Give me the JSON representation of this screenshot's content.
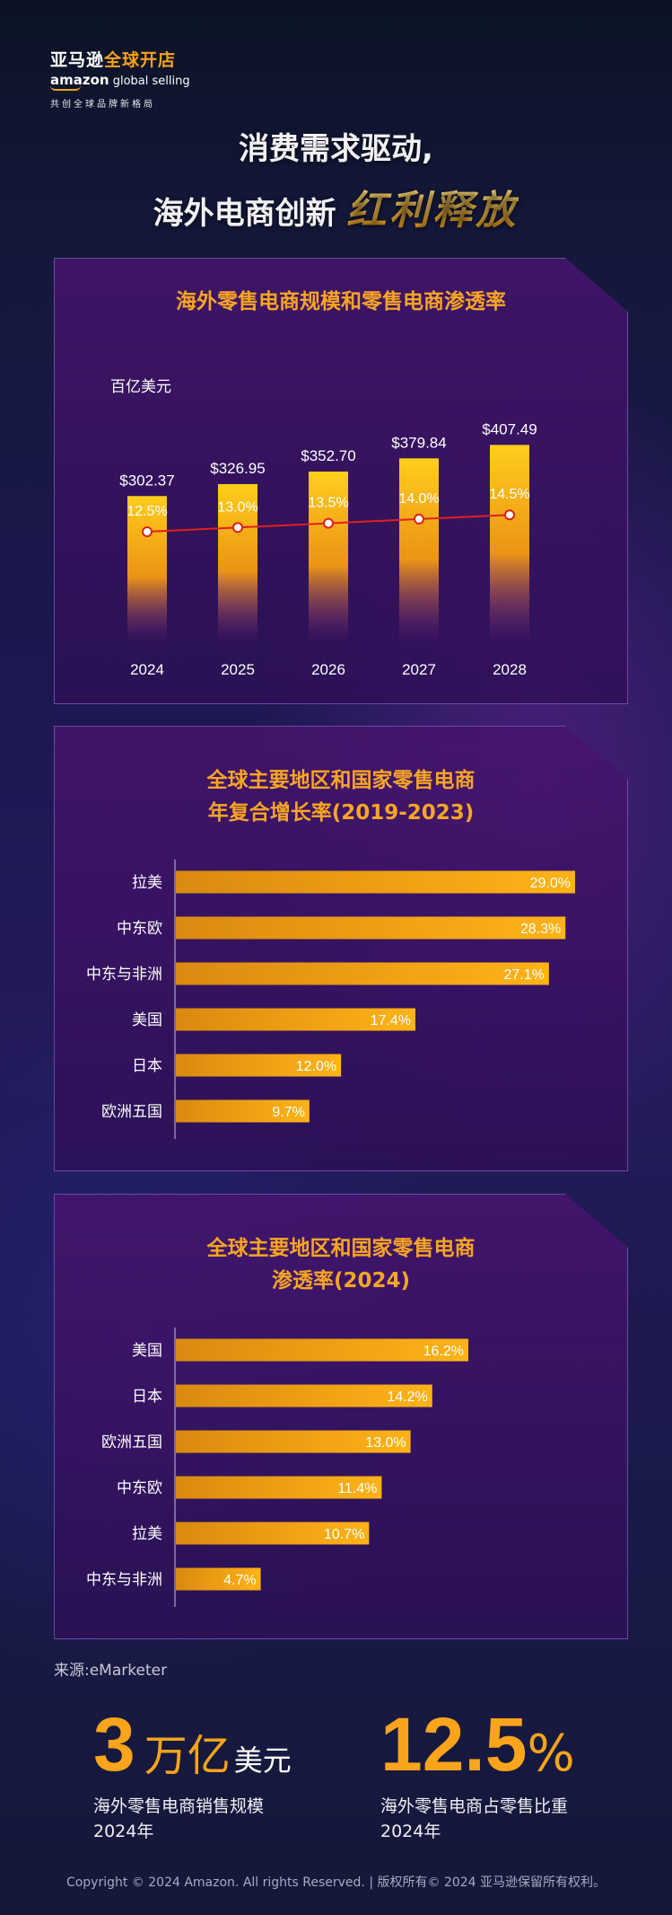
{
  "logo": {
    "cn_white": "亚马逊",
    "cn_orange": "全球开店",
    "en_bold": "amazon",
    "en_rest": " global selling",
    "tagline": "共创全球品牌新格局"
  },
  "headline": {
    "line1": "消费需求驱动,",
    "line2_prefix": "海外电商创新",
    "line2_flair": "红利释放"
  },
  "colors": {
    "accent": "#f9a41a",
    "line": "#e0201a",
    "panel": "#3a1468"
  },
  "chart_data": [
    {
      "type": "bar",
      "title": "海外零售电商规模和零售电商渗透率",
      "unit_label": "百亿美元",
      "categories": [
        "2024",
        "2025",
        "2026",
        "2027",
        "2028"
      ],
      "series": [
        {
          "values": [
            302.37,
            326.95,
            352.7,
            379.84,
            407.49
          ],
          "labels": [
            "$302.37",
            "$326.95",
            "$352.70",
            "$379.84",
            "$407.49"
          ]
        },
        {
          "values": [
            12.5,
            13.0,
            13.5,
            14.0,
            14.5
          ],
          "labels": [
            "12.5%",
            "13.0%",
            "13.5%",
            "14.0%",
            "14.5%"
          ]
        }
      ]
    },
    {
      "type": "bar",
      "title": "全球主要地区和国家零售电商",
      "subtitle": "年复合增长率(2019-2023)",
      "categories": [
        "拉美",
        "中东欧",
        "中东与非洲",
        "美国",
        "日本",
        "欧洲五国"
      ],
      "values": [
        29.0,
        28.3,
        27.1,
        17.4,
        12.0,
        9.7
      ],
      "labels": [
        "29.0%",
        "28.3%",
        "27.1%",
        "17.4%",
        "12.0%",
        "9.7%"
      ]
    },
    {
      "type": "bar",
      "title": "全球主要地区和国家零售电商",
      "subtitle": "渗透率(2024)",
      "categories": [
        "美国",
        "日本",
        "欧洲五国",
        "中东欧",
        "拉美",
        "中东与非洲"
      ],
      "values": [
        16.2,
        14.2,
        13.0,
        11.4,
        10.7,
        4.7
      ],
      "labels": [
        "16.2%",
        "14.2%",
        "13.0%",
        "11.4%",
        "10.7%",
        "4.7%"
      ]
    }
  ],
  "source": "来源:eMarketer",
  "stats": [
    {
      "number": "3",
      "unit_cn": "万亿",
      "unit_small": "美元",
      "desc1": "海外零售电商销售规模",
      "desc2": "2024年"
    },
    {
      "number": "12.5",
      "unit_pct": "%",
      "desc1": "海外零售电商占零售比重",
      "desc2": "2024年"
    }
  ],
  "copyright": "Copyright © 2024 Amazon. All rights Reserved. | 版权所有© 2024 亚马逊保留所有权利。"
}
